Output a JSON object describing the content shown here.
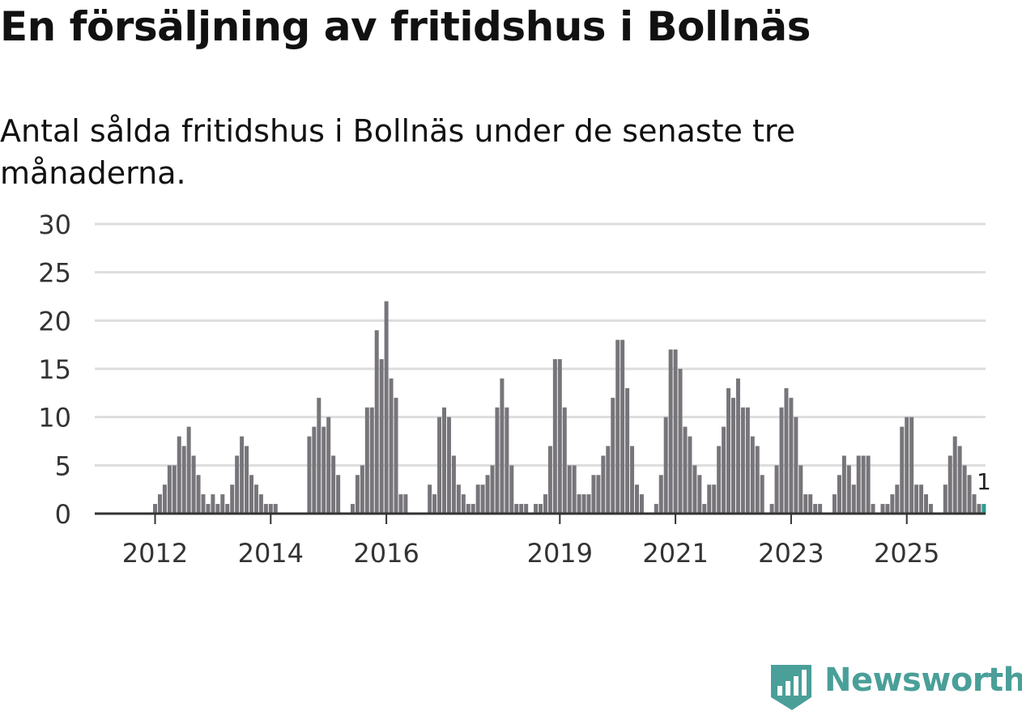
{
  "title": "En försäljning av fritidshus i Bollnäs",
  "subtitle": "Antal sålda fritidshus i Bollnäs under de senaste tre månaderna.",
  "brand": {
    "name": "Newsworthy",
    "color": "#4a9f99",
    "icon": "newsworthy-logo-icon"
  },
  "chart_data": {
    "type": "bar",
    "title": "En försäljning av fritidshus i Bollnäs",
    "subtitle": "Antal sålda fritidshus i Bollnäs under de senaste tre månaderna.",
    "xlabel": "",
    "ylabel": "",
    "ylim": [
      0,
      30
    ],
    "yticks": [
      0,
      5,
      10,
      15,
      20,
      25,
      30
    ],
    "xtick_labels": [
      "2012",
      "2014",
      "2016",
      "2019",
      "2021",
      "2023",
      "2025"
    ],
    "grid": true,
    "legend": "none",
    "bar_color": "#77757a",
    "highlight_color": "#2a9d8f",
    "highlight_label": "1",
    "start": "2011-09",
    "values": [
      0,
      0,
      0,
      0,
      1,
      2,
      3,
      5,
      5,
      8,
      7,
      9,
      6,
      4,
      2,
      1,
      2,
      1,
      2,
      1,
      3,
      6,
      8,
      7,
      4,
      3,
      2,
      1,
      1,
      1,
      0,
      0,
      0,
      0,
      0,
      0,
      8,
      9,
      12,
      9,
      10,
      6,
      4,
      0,
      0,
      1,
      4,
      5,
      11,
      11,
      19,
      16,
      22,
      14,
      12,
      2,
      2,
      0,
      0,
      0,
      0,
      3,
      2,
      10,
      11,
      10,
      6,
      3,
      2,
      1,
      1,
      3,
      3,
      4,
      5,
      11,
      14,
      11,
      5,
      1,
      1,
      1,
      0,
      1,
      1,
      2,
      7,
      16,
      16,
      11,
      5,
      5,
      2,
      2,
      2,
      4,
      4,
      6,
      7,
      12,
      18,
      18,
      13,
      7,
      3,
      2,
      0,
      0,
      1,
      4,
      10,
      17,
      17,
      15,
      9,
      8,
      5,
      4,
      1,
      3,
      3,
      7,
      9,
      13,
      12,
      14,
      11,
      11,
      8,
      7,
      4,
      0,
      1,
      5,
      11,
      13,
      12,
      10,
      5,
      2,
      2,
      1,
      1,
      0,
      0,
      2,
      4,
      6,
      5,
      3,
      6,
      6,
      6,
      1,
      0,
      1,
      1,
      2,
      3,
      9,
      10,
      10,
      3,
      3,
      2,
      1,
      0,
      0,
      3,
      6,
      8,
      7,
      5,
      4,
      2,
      1,
      1
    ]
  }
}
